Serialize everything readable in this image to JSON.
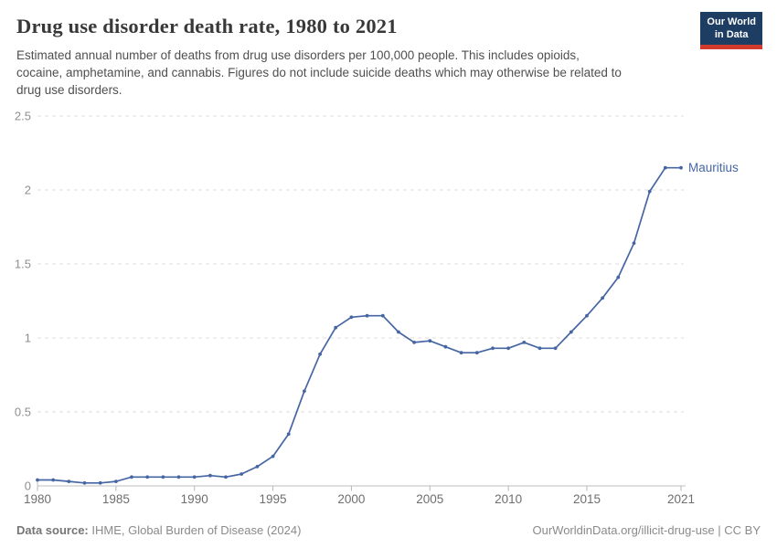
{
  "header": {
    "title": "Drug use disorder death rate, 1980 to 2021",
    "subtitle_lines": [
      "Estimated annual number of deaths from drug use disorders per 100,000 people. This includes opioids,",
      "cocaine, amphetamine, and cannabis. Figures do not include suicide deaths which may otherwise be related to",
      "drug use disorders."
    ],
    "logo": {
      "line1": "Our World",
      "line2": "in Data",
      "bg_color": "#1d3d63",
      "bar_color": "#d23a2e"
    }
  },
  "chart_data": {
    "type": "line",
    "title": "Drug use disorder death rate, 1980 to 2021",
    "xlabel": "",
    "ylabel": "",
    "xlim": [
      1980,
      2021
    ],
    "ylim": [
      0,
      2.5
    ],
    "x_ticks": [
      1980,
      1985,
      1990,
      1995,
      2000,
      2005,
      2010,
      2015,
      2021
    ],
    "y_ticks": [
      0,
      0.5,
      1,
      1.5,
      2,
      2.5
    ],
    "grid": "horizontal-dashed",
    "legend_position": "end-of-line",
    "colors": {
      "line": "#4666a3",
      "gridline": "#dedede",
      "axis": "#bdbdbd",
      "tick": "#b5b5b5",
      "x_tick_label": "#6e6e6e",
      "y_tick_label": "#8f8f8f"
    },
    "series": [
      {
        "name": "Mauritius",
        "color": "#4666a3",
        "x": [
          1980,
          1981,
          1982,
          1983,
          1984,
          1985,
          1986,
          1987,
          1988,
          1989,
          1990,
          1991,
          1992,
          1993,
          1994,
          1995,
          1996,
          1997,
          1998,
          1999,
          2000,
          2001,
          2002,
          2003,
          2004,
          2005,
          2006,
          2007,
          2008,
          2009,
          2010,
          2011,
          2012,
          2013,
          2014,
          2015,
          2016,
          2017,
          2018,
          2019,
          2020,
          2021
        ],
        "values": [
          0.04,
          0.04,
          0.03,
          0.02,
          0.02,
          0.03,
          0.06,
          0.06,
          0.06,
          0.06,
          0.06,
          0.07,
          0.06,
          0.08,
          0.13,
          0.2,
          0.35,
          0.64,
          0.89,
          1.07,
          1.14,
          1.15,
          1.15,
          1.04,
          0.97,
          0.98,
          0.94,
          0.9,
          0.9,
          0.93,
          0.93,
          0.97,
          0.93,
          0.93,
          1.04,
          1.15,
          1.27,
          1.41,
          1.64,
          1.99,
          2.15,
          2.15
        ]
      }
    ]
  },
  "footer": {
    "source_label": "Data source:",
    "source_text": " IHME, Global Burden of Disease (2024)",
    "credit": "OurWorldinData.org/illicit-drug-use | CC BY"
  }
}
